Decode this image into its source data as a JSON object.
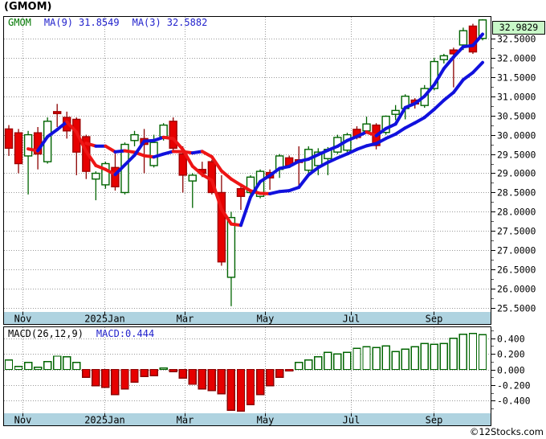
{
  "page_title": "(GMOM)",
  "watermark": "©12Stocks.com",
  "main_chart": {
    "symbol": "GMOM",
    "ma9_label": "MA(9)",
    "ma9_value": "31.8549",
    "ma3_label": "MA(3)",
    "ma3_value": "32.5882",
    "last_price_label": "32.9829"
  },
  "macd_panel": {
    "label": "MACD(26,12,9)",
    "value_label": "MACD:0.444"
  },
  "colors": {
    "candle_up_border": "#006400",
    "candle_up_fill": "#ffffff",
    "candle_down_fill": "#e60000",
    "candle_down_border": "#a00000",
    "wick_up": "#006400",
    "wick_down": "#8b0000",
    "ma_rising": "#1111dd",
    "ma_falling": "#ee1515",
    "grid": "#999999",
    "frame": "#000000",
    "band": "#afd3e0",
    "badge_bg": "#c8f8c8",
    "hist_pos_border": "#006400",
    "hist_pos_fill": "#ffffff",
    "hist_neg_fill": "#e60000"
  },
  "chart_data": [
    {
      "type": "candlestick",
      "name": "price-panel",
      "title": "(GMOM)",
      "legend": [
        "GMOM",
        "MA(9) 31.8549",
        "MA(3) 32.5882"
      ],
      "last_price": 32.9829,
      "ylim": [
        25.4,
        33.08
      ],
      "y_ticks": [
        32.5,
        32.0,
        31.5,
        31.0,
        30.5,
        30.0,
        29.5,
        29.0,
        28.5,
        28.0,
        27.5,
        27.0,
        26.5,
        26.0,
        25.5
      ],
      "y_tick_labels": [
        "32.5000",
        "32.0000",
        "31.5000",
        "31.0000",
        "30.5000",
        "30.0000",
        "29.5000",
        "29.0000",
        "28.5000",
        "28.0000",
        "27.5000",
        "27.0000",
        "26.5000",
        "26.0000",
        "25.5000"
      ],
      "y_minor_step": 0.25,
      "x_tick_labels": [
        "Nov",
        "2025Jan",
        "Mar",
        "May",
        "Jul",
        "Sep"
      ],
      "x_tick_pos": [
        0.039,
        0.207,
        0.372,
        0.536,
        0.712,
        0.882
      ],
      "moving_averages": [
        {
          "name": "MA(9)",
          "period": 9,
          "current": 31.8549
        },
        {
          "name": "MA(3)",
          "period": 3,
          "current": 32.5882
        }
      ],
      "candles": [
        [
          30.15,
          30.25,
          29.45,
          29.65
        ],
        [
          30.05,
          30.15,
          29.0,
          29.25
        ],
        [
          29.45,
          30.1,
          28.45,
          30.0
        ],
        [
          30.05,
          30.2,
          29.1,
          29.5
        ],
        [
          29.3,
          30.45,
          29.25,
          30.35
        ],
        [
          30.6,
          30.8,
          30.2,
          30.55
        ],
        [
          30.45,
          30.6,
          29.9,
          30.1
        ],
        [
          30.4,
          30.45,
          28.95,
          29.55
        ],
        [
          29.95,
          30.0,
          28.85,
          29.05
        ],
        [
          28.85,
          29.05,
          28.3,
          29.0
        ],
        [
          28.7,
          29.3,
          28.6,
          29.25
        ],
        [
          29.15,
          29.55,
          28.55,
          28.65
        ],
        [
          28.5,
          29.8,
          28.45,
          29.75
        ],
        [
          29.85,
          30.1,
          29.7,
          30.0
        ],
        [
          29.9,
          30.15,
          29.0,
          29.75
        ],
        [
          29.2,
          30.0,
          29.15,
          29.8
        ],
        [
          29.95,
          30.3,
          29.85,
          30.25
        ],
        [
          30.35,
          30.45,
          29.6,
          29.65
        ],
        [
          29.5,
          29.7,
          28.5,
          28.95
        ],
        [
          28.8,
          29.0,
          28.1,
          28.95
        ],
        [
          29.1,
          29.3,
          28.9,
          29.0
        ],
        [
          29.3,
          29.35,
          28.45,
          28.5
        ],
        [
          28.5,
          28.95,
          26.6,
          26.7
        ],
        [
          26.3,
          28.0,
          25.55,
          27.85
        ],
        [
          28.6,
          28.65,
          28.05,
          28.4
        ],
        [
          28.5,
          28.95,
          28.4,
          28.9
        ],
        [
          28.4,
          29.1,
          28.35,
          29.05
        ],
        [
          29.02,
          29.1,
          28.57,
          28.88
        ],
        [
          29.1,
          29.5,
          28.88,
          29.45
        ],
        [
          29.4,
          29.46,
          29.15,
          29.2
        ],
        [
          29.35,
          29.7,
          28.6,
          29.28
        ],
        [
          29.08,
          29.7,
          29.0,
          29.62
        ],
        [
          29.2,
          29.65,
          28.95,
          29.55
        ],
        [
          29.38,
          29.68,
          28.95,
          29.62
        ],
        [
          29.55,
          30.0,
          29.5,
          29.93
        ],
        [
          29.6,
          30.05,
          29.55,
          30.0
        ],
        [
          30.14,
          30.22,
          29.88,
          29.93
        ],
        [
          30.1,
          30.47,
          30.05,
          30.28
        ],
        [
          30.25,
          30.3,
          29.62,
          29.72
        ],
        [
          30.06,
          30.5,
          30.0,
          30.48
        ],
        [
          30.53,
          30.77,
          30.38,
          30.63
        ],
        [
          30.68,
          31.05,
          30.4,
          31.0
        ],
        [
          30.9,
          30.95,
          30.68,
          30.8
        ],
        [
          30.76,
          31.29,
          30.7,
          31.2
        ],
        [
          31.2,
          32.0,
          31.15,
          31.9
        ],
        [
          31.95,
          32.1,
          31.85,
          32.05
        ],
        [
          32.2,
          32.26,
          31.23,
          32.1
        ],
        [
          32.33,
          32.78,
          32.2,
          32.7
        ],
        [
          32.82,
          32.88,
          32.1,
          32.15
        ],
        [
          32.5,
          33.0,
          32.45,
          32.98
        ]
      ]
    },
    {
      "type": "bar",
      "name": "macd-histogram",
      "params": "26,12,9",
      "current": 0.444,
      "ylim": [
        -0.56,
        0.55
      ],
      "y_ticks": [
        0.4,
        0.2,
        0.0,
        -0.2,
        -0.4
      ],
      "y_tick_labels": [
        "0.400",
        "0.200",
        "0.000",
        "-0.200",
        "-0.400"
      ],
      "y_minor_step": 0.1,
      "x_tick_labels": [
        "Nov",
        "2025Jan",
        "Mar",
        "May",
        "Jul",
        "Sep"
      ],
      "x_tick_pos": [
        0.039,
        0.207,
        0.372,
        0.536,
        0.712,
        0.882
      ],
      "values": [
        0.12,
        0.04,
        0.09,
        0.03,
        0.1,
        0.17,
        0.16,
        0.09,
        -0.1,
        -0.21,
        -0.23,
        -0.32,
        -0.25,
        -0.16,
        -0.09,
        -0.08,
        0.02,
        -0.03,
        -0.11,
        -0.19,
        -0.25,
        -0.27,
        -0.31,
        -0.52,
        -0.53,
        -0.45,
        -0.32,
        -0.21,
        -0.1,
        -0.02,
        0.09,
        0.12,
        0.16,
        0.22,
        0.2,
        0.22,
        0.27,
        0.29,
        0.28,
        0.3,
        0.23,
        0.26,
        0.29,
        0.33,
        0.32,
        0.33,
        0.4,
        0.45,
        0.46,
        0.444
      ]
    }
  ]
}
